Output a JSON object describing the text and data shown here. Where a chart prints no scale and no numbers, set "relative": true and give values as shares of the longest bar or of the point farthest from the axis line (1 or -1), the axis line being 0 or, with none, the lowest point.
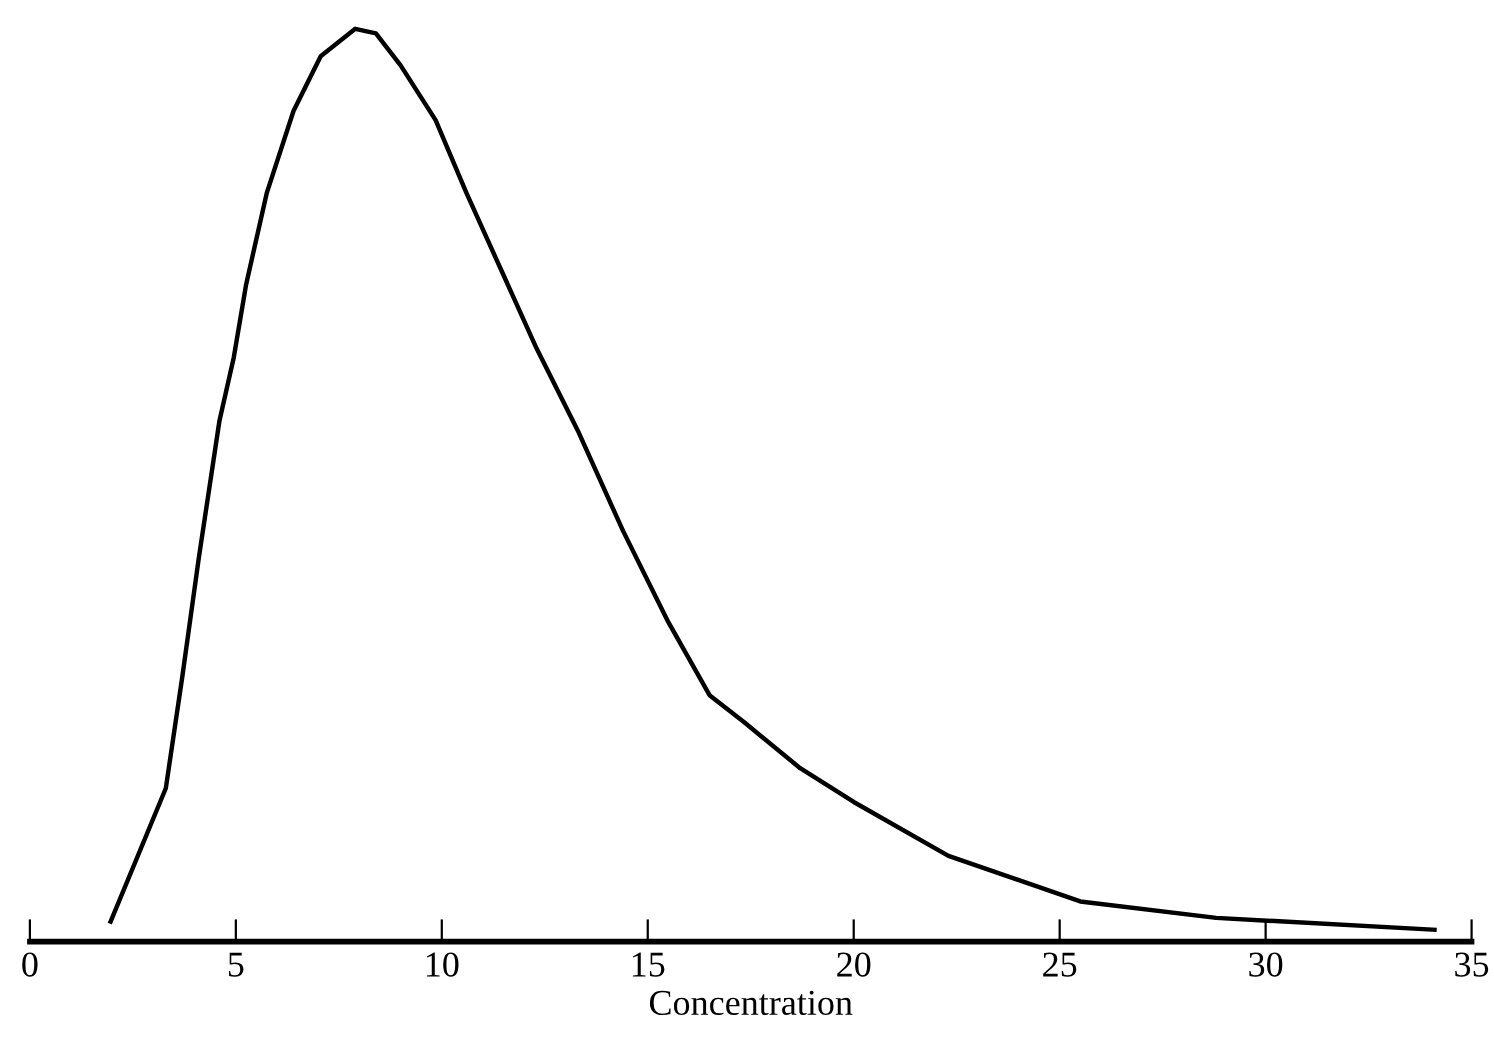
{
  "chart_data": {
    "type": "line",
    "xlabel": "Concentration",
    "relative": true,
    "xlim": [
      0,
      35
    ],
    "xticks": [
      0,
      5,
      10,
      15,
      20,
      25,
      30,
      35
    ],
    "grid": false,
    "legend": false,
    "marker": "none",
    "line_style": "solid",
    "series": [
      {
        "color": "#000000",
        "x": [
          1.96,
          3.3,
          3.7,
          4.1,
          4.6,
          4.95,
          5.25,
          5.75,
          6.4,
          7.06,
          7.9,
          8.4,
          9.0,
          9.85,
          10.6,
          11.5,
          12.3,
          13.3,
          14.4,
          15.5,
          16.5,
          17.35,
          18.7,
          20.0,
          22.3,
          25.5,
          28.8,
          34.1
        ],
        "values": [
          0.022,
          0.168,
          0.29,
          0.42,
          0.57,
          0.64,
          0.72,
          0.82,
          0.91,
          0.97,
          1.0,
          0.995,
          0.96,
          0.9,
          0.82,
          0.73,
          0.65,
          0.56,
          0.45,
          0.35,
          0.27,
          0.24,
          0.19,
          0.153,
          0.094,
          0.044,
          0.026,
          0.013
        ]
      }
    ]
  }
}
